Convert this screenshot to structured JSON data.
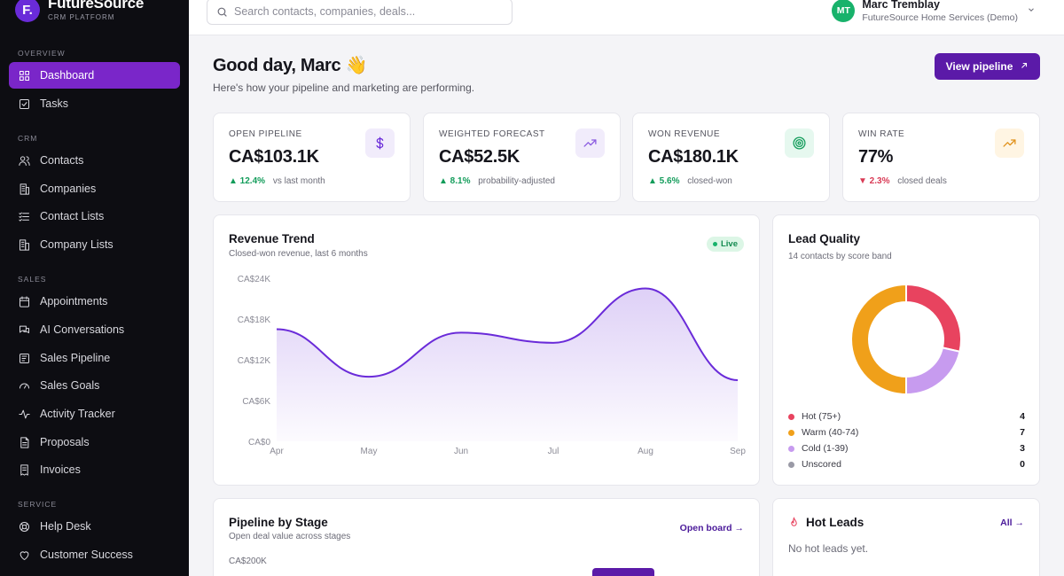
{
  "brand": {
    "name": "FutureSource",
    "sub": "CRM PLATFORM",
    "logo": "F."
  },
  "sidebar": {
    "sections": [
      {
        "label": "OVERVIEW",
        "items": [
          {
            "label": "Dashboard",
            "icon": "grid-icon",
            "active": true
          },
          {
            "label": "Tasks",
            "icon": "checkbox-icon"
          }
        ]
      },
      {
        "label": "CRM",
        "items": [
          {
            "label": "Contacts",
            "icon": "users-icon"
          },
          {
            "label": "Companies",
            "icon": "building-icon"
          },
          {
            "label": "Contact Lists",
            "icon": "list-icon"
          },
          {
            "label": "Company Lists",
            "icon": "building-list-icon"
          }
        ]
      },
      {
        "label": "SALES",
        "items": [
          {
            "label": "Appointments",
            "icon": "calendar-icon"
          },
          {
            "label": "AI Conversations",
            "icon": "chat-icon"
          },
          {
            "label": "Sales Pipeline",
            "icon": "pipeline-icon"
          },
          {
            "label": "Sales Goals",
            "icon": "gauge-icon"
          },
          {
            "label": "Activity Tracker",
            "icon": "activity-icon"
          },
          {
            "label": "Proposals",
            "icon": "document-icon"
          },
          {
            "label": "Invoices",
            "icon": "receipt-icon"
          }
        ]
      },
      {
        "label": "SERVICE",
        "items": [
          {
            "label": "Help Desk",
            "icon": "lifebuoy-icon"
          },
          {
            "label": "Customer Success",
            "icon": "heart-icon"
          }
        ]
      }
    ]
  },
  "search": {
    "placeholder": "Search contacts, companies, deals..."
  },
  "user": {
    "initials": "MT",
    "name": "Marc Tremblay",
    "org": "FutureSource Home Services (Demo)",
    "avatar_color": "#18b26b"
  },
  "header": {
    "greeting": "Good day, Marc 👋",
    "subtitle": "Here's how your pipeline and marketing are performing.",
    "cta": "View pipeline"
  },
  "kpis": [
    {
      "label": "OPEN PIPELINE",
      "value": "CA$103.1K",
      "delta": "▲ 12.4%",
      "direction": "up",
      "note": "vs last month",
      "icon": "dollar-icon",
      "tint": "#f1ecfb",
      "color": "#6a2bd9"
    },
    {
      "label": "WEIGHTED FORECAST",
      "value": "CA$52.5K",
      "delta": "▲ 8.1%",
      "direction": "up",
      "note": "probability-adjusted",
      "icon": "trend-up-icon",
      "tint": "#f1ecfb",
      "color": "#8a5ae0"
    },
    {
      "label": "WON REVENUE",
      "value": "CA$180.1K",
      "delta": "▲ 5.6%",
      "direction": "up",
      "note": "closed-won",
      "icon": "target-icon",
      "tint": "#e6f8ef",
      "color": "#129c5a"
    },
    {
      "label": "WIN RATE",
      "value": "77%",
      "delta": "▼ 2.3%",
      "direction": "down",
      "note": "closed deals",
      "icon": "trend-up-icon",
      "tint": "#fff5e3",
      "color": "#e0911a"
    }
  ],
  "revenue": {
    "title": "Revenue Trend",
    "subtitle": "Closed-won revenue, last 6 months",
    "badge": "Live"
  },
  "lead_quality": {
    "title": "Lead Quality",
    "subtitle": "14 contacts by score band"
  },
  "pipeline": {
    "title": "Pipeline by Stage",
    "subtitle": "Open deal value across stages",
    "link": "Open board →",
    "tick": "CA$200K"
  },
  "hot_leads": {
    "title": "Hot Leads",
    "link": "All →",
    "empty": "No hot leads yet."
  },
  "chart_data": [
    {
      "type": "area",
      "title": "Revenue Trend",
      "x": [
        "Apr",
        "May",
        "Jun",
        "Jul",
        "Aug",
        "Sep"
      ],
      "series": [
        {
          "values": [
            16.5,
            9.5,
            16,
            14.5,
            22.5,
            9
          ]
        }
      ],
      "ylim": [
        0,
        24
      ],
      "yticks": [
        "CA$0",
        "CA$6K",
        "CA$12K",
        "CA$18K",
        "CA$24K"
      ],
      "grid": false,
      "color": "#6a2bd9"
    },
    {
      "type": "pie",
      "title": "Lead Quality",
      "categories": [
        "Hot (75+)",
        "Warm (40-74)",
        "Cold (1-39)",
        "Unscored"
      ],
      "values": [
        4,
        7,
        3,
        0
      ],
      "colors": [
        "#e8435f",
        "#f0a01a",
        "#c79bef",
        "#9a9aa6"
      ],
      "legend": "bottom"
    }
  ]
}
